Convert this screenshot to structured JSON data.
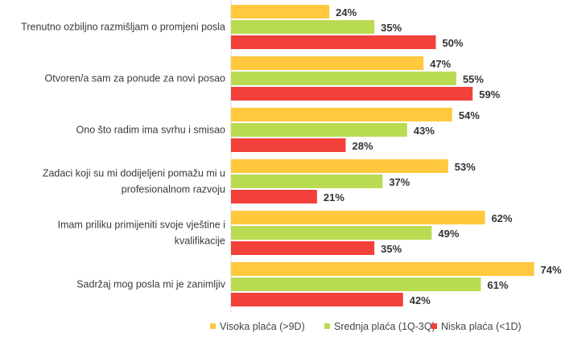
{
  "chart_data": {
    "type": "bar",
    "orientation": "horizontal",
    "categories": [
      [
        "Trenutno ozbiljno razmišljam o promjeni posla"
      ],
      [
        "Otvoren/a sam za ponude za novi posao"
      ],
      [
        "Ono što radim ima svrhu i smisao"
      ],
      [
        "Zadaci koji su mi dodijeljeni pomažu mi u",
        "profesionalnom razvoju"
      ],
      [
        "Imam priliku primijeniti svoje vještine i",
        "kvalifikacije"
      ],
      [
        "Sadržaj mog posla mi je zanimljiv"
      ]
    ],
    "series": [
      {
        "name": "Visoka plaća (>9D)",
        "color": "#FFC83D",
        "values": [
          24,
          47,
          54,
          53,
          62,
          74
        ]
      },
      {
        "name": "Srednja plaća (1Q-3Q)",
        "color": "#B9DB52",
        "values": [
          35,
          55,
          43,
          37,
          49,
          61
        ]
      },
      {
        "name": "Niska plaća (<1D)",
        "color": "#F2403A",
        "values": [
          50,
          59,
          28,
          21,
          35,
          42
        ]
      }
    ],
    "value_suffix": "%",
    "xlim": [
      0,
      80
    ],
    "grid": false,
    "legend": "bottom"
  }
}
